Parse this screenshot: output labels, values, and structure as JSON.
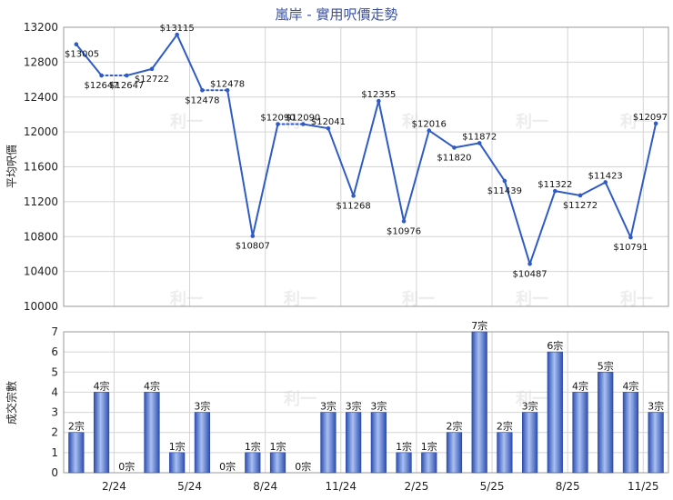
{
  "title": "嵐岸 - 實用呎價走勢",
  "colors": {
    "line": "#2f5bc6",
    "bar_light": "#8ea9e8",
    "bar_dark": "#2d4fb0",
    "grid": "#d4d4d4",
    "title": "#3a4fa0"
  },
  "watermark": "利一",
  "chart_data": [
    {
      "type": "line",
      "ylabel": "平均呎價",
      "ylim": [
        10000,
        13200
      ],
      "yticks": [
        10000,
        10400,
        10800,
        11200,
        11600,
        12000,
        12400,
        12800,
        13200
      ],
      "values": [
        13005,
        12647,
        12647,
        12722,
        13115,
        12478,
        12478,
        10807,
        12090,
        12090,
        12041,
        11268,
        12355,
        10976,
        12016,
        11820,
        11872,
        11439,
        10487,
        11322,
        11272,
        11423,
        10791,
        12097
      ],
      "labels": [
        "$13005",
        "$12647",
        "$12647",
        "$12722",
        "$13115",
        "$12478",
        "$12478",
        "$10807",
        "$12090",
        "$12090",
        "$12041",
        "$11268",
        "$12355",
        "$10976",
        "$12016",
        "$11820",
        "$11872",
        "$11439",
        "$10487",
        "$11322",
        "$11272",
        "$11423",
        "$10791",
        "$12097"
      ],
      "dotted_segments_after_index": [
        1,
        5,
        8
      ],
      "grid": true
    },
    {
      "type": "bar",
      "ylabel": "成交宗數",
      "ylim": [
        0,
        7
      ],
      "yticks": [
        0,
        1,
        2,
        3,
        4,
        5,
        6,
        7
      ],
      "values": [
        2,
        4,
        0,
        4,
        1,
        3,
        0,
        1,
        1,
        0,
        3,
        3,
        3,
        1,
        1,
        2,
        7,
        2,
        3,
        6,
        4,
        5,
        4,
        3
      ],
      "labels": [
        "2宗",
        "4宗",
        "0宗",
        "4宗",
        "1宗",
        "3宗",
        "0宗",
        "1宗",
        "1宗",
        "0宗",
        "3宗",
        "3宗",
        "3宗",
        "1宗",
        "1宗",
        "2宗",
        "7宗",
        "2宗",
        "3宗",
        "6宗",
        "4宗",
        "5宗",
        "4宗",
        "3宗"
      ],
      "x_tick_labels": [
        "2/24",
        "5/24",
        "8/24",
        "11/24",
        "2/25",
        "5/25",
        "8/25",
        "11/25"
      ],
      "x_tick_after_index": [
        1,
        4,
        7,
        10,
        13,
        16,
        19,
        22
      ],
      "grid": true
    }
  ]
}
